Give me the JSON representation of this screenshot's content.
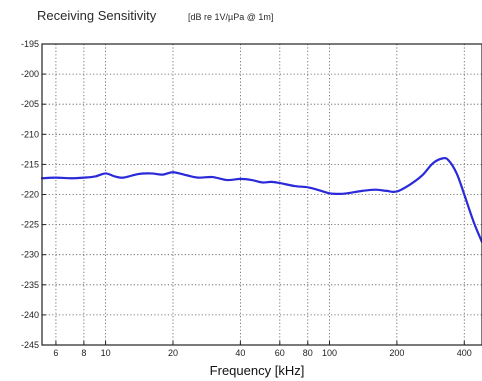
{
  "chart_data": {
    "type": "line",
    "title": "Receiving Sensitivity",
    "title_unit": "[dB re 1V/µPa @ 1m]",
    "xlabel": "Frequency [kHz]",
    "ylabel": "",
    "x_scale": "log",
    "xlim": [
      5.2,
      480
    ],
    "ylim": [
      -245,
      -195
    ],
    "grid": true,
    "grid_style": "dotted",
    "x_tick_labels": [
      "6",
      "8",
      "10",
      "20",
      "40",
      "60",
      "80",
      "100",
      "200",
      "400"
    ],
    "x_ticks": [
      6,
      8,
      10,
      20,
      40,
      60,
      80,
      100,
      200,
      400
    ],
    "y_ticks": [
      -195,
      -200,
      -205,
      -210,
      -215,
      -220,
      -225,
      -230,
      -235,
      -240,
      -245
    ],
    "y_tick_labels": [
      "-195",
      "-200",
      "-205",
      "-210",
      "-215",
      "-220",
      "-225",
      "-230",
      "-235",
      "-240",
      "-245"
    ],
    "series_color": "#2a2ad8",
    "series": [
      {
        "x": [
          5.2,
          6,
          7,
          8,
          9,
          10,
          11,
          12,
          14,
          16,
          18,
          20,
          23,
          26,
          30,
          35,
          40,
          45,
          50,
          55,
          60,
          70,
          80,
          90,
          100,
          110,
          120,
          140,
          160,
          180,
          200,
          230,
          260,
          290,
          320,
          340,
          370,
          400,
          440,
          480
        ],
        "y": [
          -217.3,
          -217.2,
          -217.3,
          -217.2,
          -217.0,
          -216.5,
          -217.0,
          -217.2,
          -216.6,
          -216.5,
          -216.7,
          -216.3,
          -216.8,
          -217.2,
          -217.1,
          -217.6,
          -217.4,
          -217.6,
          -218.0,
          -217.9,
          -218.1,
          -218.6,
          -218.8,
          -219.3,
          -219.8,
          -219.9,
          -219.8,
          -219.4,
          -219.2,
          -219.4,
          -219.5,
          -218.3,
          -216.8,
          -214.8,
          -214.0,
          -214.3,
          -216.5,
          -220.0,
          -224.5,
          -227.9
        ]
      }
    ]
  }
}
